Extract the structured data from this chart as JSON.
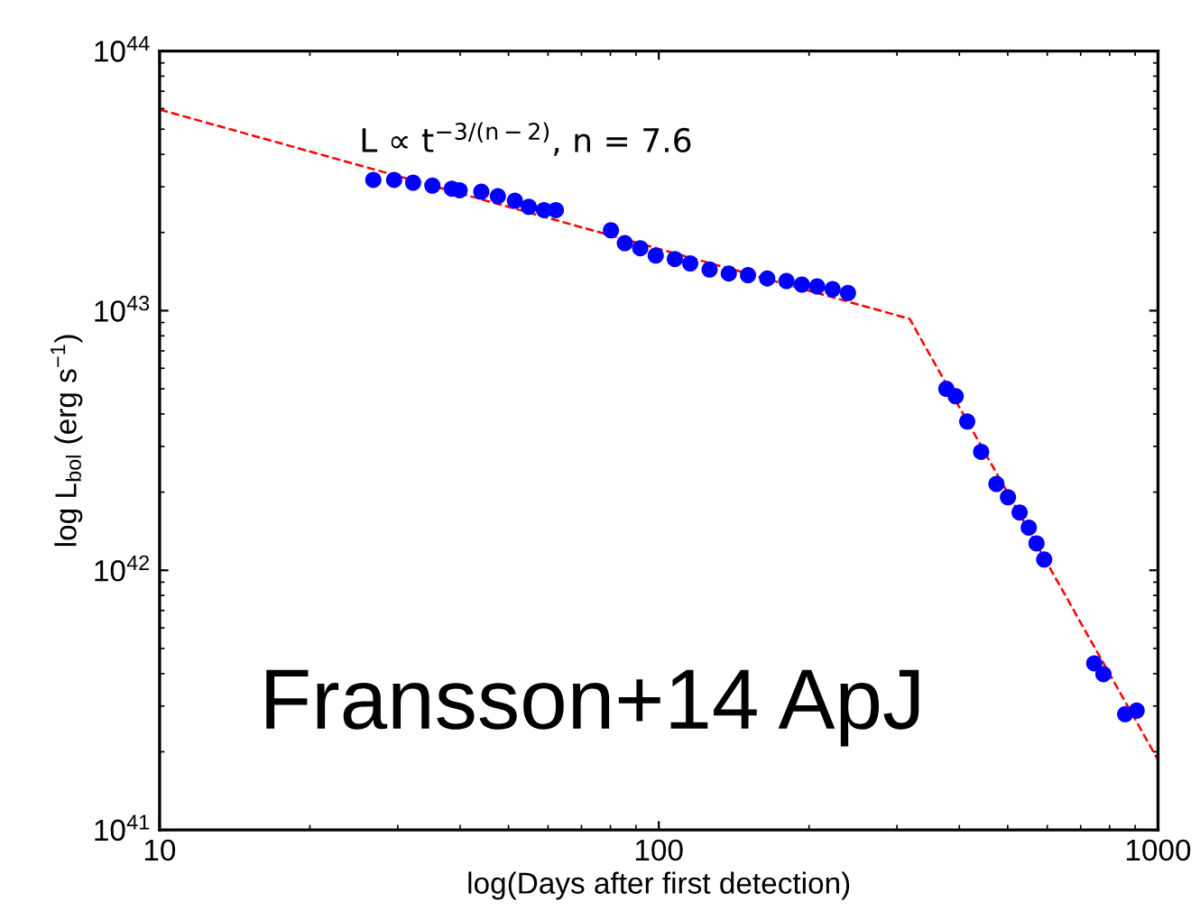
{
  "chart_data": {
    "type": "scatter",
    "xlabel": "log(Days after first detection)",
    "ylabel": "log L$_{bol}$ (erg s$^{−1}$)",
    "log": "xy",
    "grid": false,
    "xlim": [
      10,
      1000
    ],
    "xticks": [
      10,
      100,
      1000
    ],
    "ylim": [
      1e+41,
      1e+44
    ],
    "yticks": [
      {
        "value": 1e+41,
        "label": "10$^{41}$"
      },
      {
        "value": 1e+42,
        "label": "10$^{42}$"
      },
      {
        "value": 1e+43,
        "label": "10$^{43}$"
      },
      {
        "value": 1e+44,
        "label": "10$^{44}$"
      }
    ],
    "annotations": [
      "L ∝ t$^{−3/(n−2)}$, n = 7.6",
      "Fransson+14 ApJ"
    ],
    "series": [
      {
        "type": "scatter",
        "color": "#0000ff",
        "marker": "circle",
        "x": [
          26.8,
          29.5,
          32.2,
          35.2,
          38.5,
          39.9,
          44.1,
          47.6,
          51.5,
          54.9,
          58.9,
          62.2,
          80.2,
          85.5,
          91.8,
          98.6,
          107.7,
          115.6,
          126.4,
          138.1,
          150.9,
          164.9,
          180.2,
          193.5,
          207.6,
          222.9,
          239.3,
          376.7,
          393.4,
          414.8,
          442.3,
          474.6,
          500.6,
          528.2,
          551.0,
          571.0,
          591.6,
          745.3,
          777.6,
          859.4,
          906.3
        ],
        "values": [
          3.19e+43,
          3.19e+43,
          3.11e+43,
          3.03e+43,
          2.95e+43,
          2.91e+43,
          2.87e+43,
          2.76e+43,
          2.65e+43,
          2.51e+43,
          2.44e+43,
          2.44e+43,
          2.04e+43,
          1.82e+43,
          1.74e+43,
          1.63e+43,
          1.58e+43,
          1.52e+43,
          1.44e+43,
          1.39e+43,
          1.37e+43,
          1.33e+43,
          1.3e+43,
          1.26e+43,
          1.24e+43,
          1.21e+43,
          1.17e+43,
          5e+42,
          4.68e+42,
          3.74e+42,
          2.86e+42,
          2.15e+42,
          1.91e+42,
          1.67e+42,
          1.46e+42,
          1.27e+42,
          1.1e+42,
          4.38e+41,
          3.98e+41,
          2.79e+41,
          2.88e+41
        ]
      },
      {
        "type": "line",
        "color": "#ff0000",
        "line_style": "dashed",
        "marker": "none",
        "x": [
          10,
          318,
          1000
        ],
        "values": [
          5.95e+43,
          9.3e+42,
          1.86e+41
        ]
      }
    ]
  }
}
